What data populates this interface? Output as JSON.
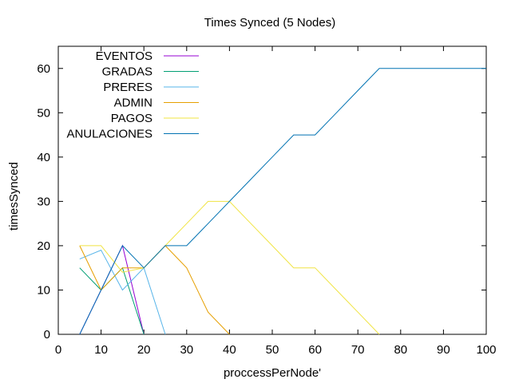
{
  "chart_data": {
    "type": "line",
    "title": "Times Synced (5 Nodes)",
    "xlabel": "proccessPerNode'",
    "ylabel": "timesSynced",
    "xlim": [
      0,
      100
    ],
    "ylim": [
      0,
      65
    ],
    "xticks": [
      0,
      10,
      20,
      30,
      40,
      50,
      60,
      70,
      80,
      90,
      100
    ],
    "yticks": [
      0,
      10,
      20,
      30,
      40,
      50,
      60
    ],
    "grid": false,
    "legend_position": "top-left",
    "series": [
      {
        "name": "EVENTOS",
        "color": "#9400d3",
        "points": [
          [
            5,
            0
          ],
          [
            10,
            10
          ],
          [
            15,
            20
          ],
          [
            20,
            0
          ]
        ]
      },
      {
        "name": "GRADAS",
        "color": "#009e73",
        "points": [
          [
            5,
            15
          ],
          [
            10,
            10
          ],
          [
            15,
            15
          ],
          [
            20,
            0
          ]
        ]
      },
      {
        "name": "PRERES",
        "color": "#56b4e9",
        "points": [
          [
            5,
            17
          ],
          [
            10,
            19
          ],
          [
            15,
            10
          ],
          [
            20,
            15
          ],
          [
            25,
            0
          ]
        ]
      },
      {
        "name": "ADMIN",
        "color": "#e69f00",
        "points": [
          [
            5,
            20
          ],
          [
            10,
            10
          ],
          [
            15,
            15
          ],
          [
            20,
            15
          ],
          [
            25,
            20
          ],
          [
            30,
            15
          ],
          [
            35,
            5
          ],
          [
            40,
            0
          ]
        ]
      },
      {
        "name": "PAGOS",
        "color": "#f0e442",
        "points": [
          [
            5,
            20
          ],
          [
            10,
            20
          ],
          [
            15,
            14
          ],
          [
            20,
            15
          ],
          [
            25,
            20
          ],
          [
            30,
            25
          ],
          [
            35,
            30
          ],
          [
            40,
            30
          ],
          [
            45,
            25
          ],
          [
            50,
            20
          ],
          [
            55,
            15
          ],
          [
            60,
            15
          ],
          [
            65,
            10
          ],
          [
            70,
            5
          ],
          [
            75,
            0
          ]
        ]
      },
      {
        "name": "ANULACIONES",
        "color": "#0072b2",
        "points": [
          [
            5,
            0
          ],
          [
            10,
            10
          ],
          [
            15,
            20
          ],
          [
            20,
            15
          ],
          [
            25,
            20
          ],
          [
            30,
            20
          ],
          [
            35,
            25
          ],
          [
            40,
            30
          ],
          [
            45,
            35
          ],
          [
            50,
            40
          ],
          [
            55,
            45
          ],
          [
            60,
            45
          ],
          [
            65,
            50
          ],
          [
            70,
            55
          ],
          [
            75,
            60
          ],
          [
            80,
            60
          ],
          [
            85,
            60
          ],
          [
            90,
            60
          ],
          [
            95,
            60
          ],
          [
            100,
            60
          ]
        ]
      }
    ]
  }
}
